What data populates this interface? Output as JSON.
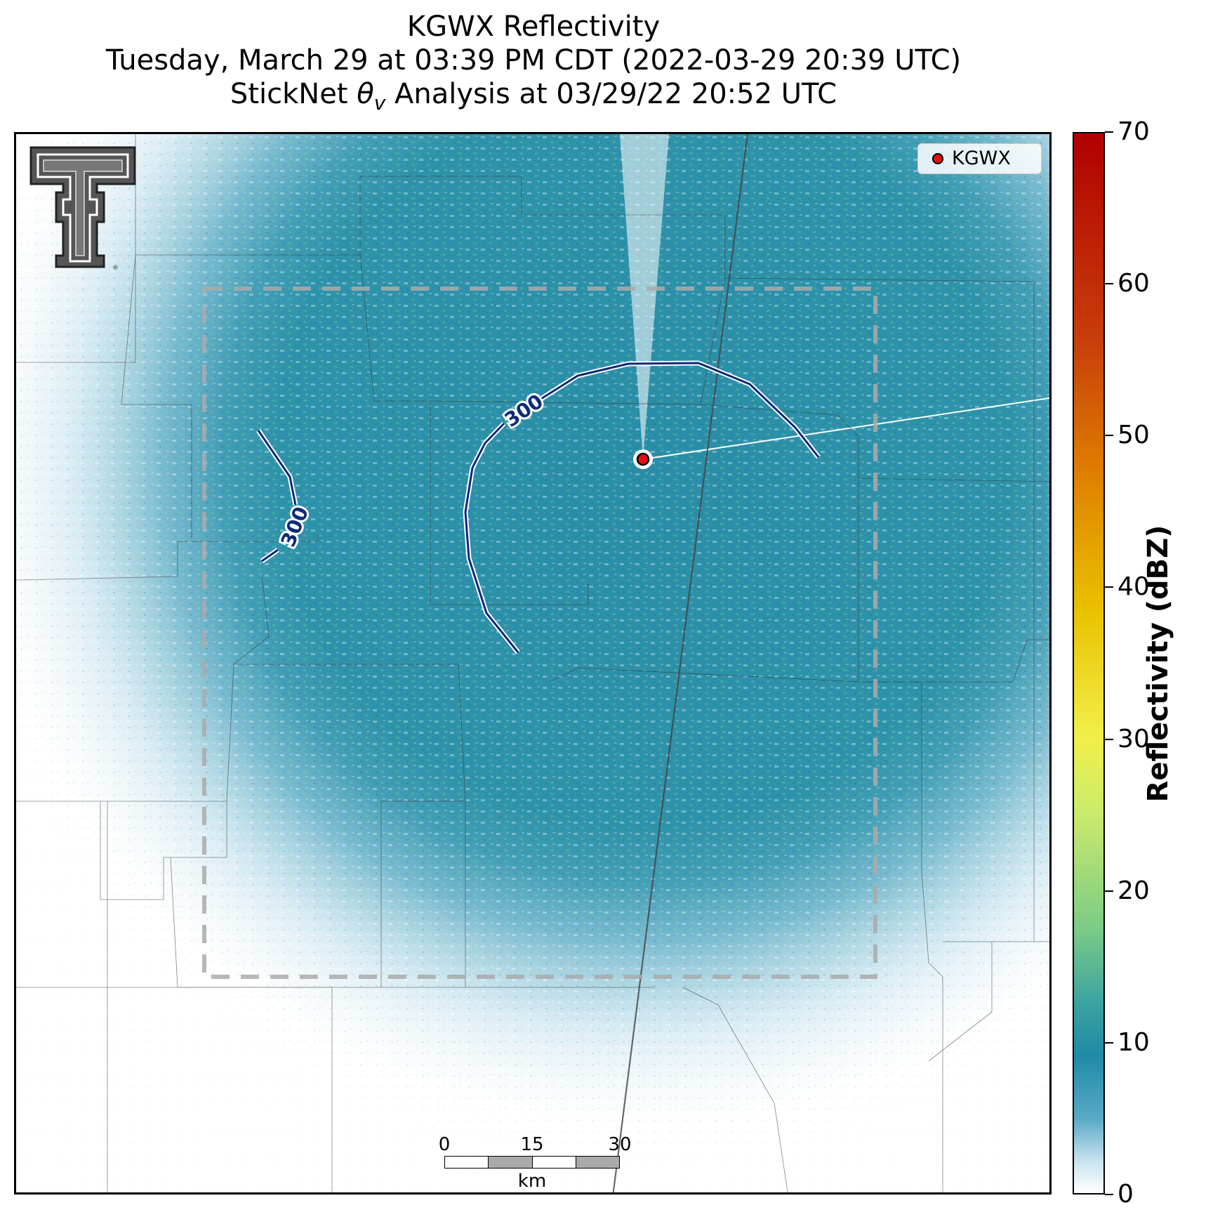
{
  "title": {
    "line1": "KGWX Reflectivity",
    "line2": "Tuesday, March 29 at 03:39 PM CDT (2022-03-29 20:39 UTC)",
    "line3": "StickNet θv Analysis at 03/29/22 20:52 UTC"
  },
  "legend": {
    "label": "KGWX",
    "marker_color": "#e01010"
  },
  "colorbar": {
    "label": "Reflectivity (dBZ)",
    "ticks": [
      "0",
      "10",
      "20",
      "30",
      "40",
      "50",
      "60",
      "70"
    ],
    "range": [
      0,
      70
    ]
  },
  "contours": {
    "labels": [
      "300",
      "300"
    ]
  },
  "scale_bar": {
    "ticks": [
      "0",
      "15",
      "30"
    ],
    "unit": "km"
  },
  "logo": {
    "name": "texas-tech-logo",
    "mark": "®"
  },
  "colors": {
    "radar_base": "#2b8fa8",
    "contour": "#0f2a78",
    "radar_site": "#e01010"
  }
}
